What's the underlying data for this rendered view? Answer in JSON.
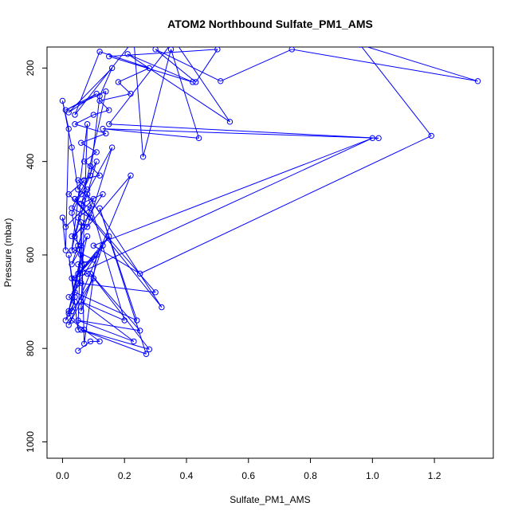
{
  "chart_data": {
    "type": "line",
    "title": "ATOM2 Northbound Sulfate_PM1_AMS",
    "xlabel": "Sulfate_PM1_AMS",
    "ylabel": "Pressure (mbar)",
    "xlim": [
      -0.05,
      1.39
    ],
    "ylim": [
      1035,
      155
    ],
    "y_reversed": true,
    "x_ticks": [
      "0.0",
      "0.2",
      "0.4",
      "0.6",
      "0.8",
      "1.0",
      "1.2"
    ],
    "y_ticks": [
      "200",
      "400",
      "600",
      "800",
      "1000"
    ],
    "grid": false,
    "series": [
      {
        "color": "#0000ff",
        "marker": "open-circle",
        "points": [
          [
            0.05,
            805
          ],
          [
            0.09,
            785
          ],
          [
            0.12,
            785
          ],
          [
            0.07,
            760
          ],
          [
            0.03,
            740
          ],
          [
            0.02,
            725
          ],
          [
            0.04,
            700
          ],
          [
            0.02,
            690
          ],
          [
            0.06,
            660
          ],
          [
            0.03,
            650
          ],
          [
            0.08,
            640
          ],
          [
            0.05,
            620
          ],
          [
            0.1,
            610
          ],
          [
            0.04,
            590
          ],
          [
            0.06,
            580
          ],
          [
            0.03,
            560
          ],
          [
            0.07,
            540
          ],
          [
            0.05,
            520
          ],
          [
            0.09,
            500
          ],
          [
            0.04,
            480
          ],
          [
            0.06,
            470
          ],
          [
            0.08,
            460
          ],
          [
            0.05,
            440
          ],
          [
            0.12,
            430
          ],
          [
            0.09,
            410
          ],
          [
            0.07,
            400
          ],
          [
            0.11,
            380
          ],
          [
            0.06,
            360
          ],
          [
            0.14,
            340
          ],
          [
            0.04,
            320
          ],
          [
            0.1,
            300
          ],
          [
            0.15,
            290
          ],
          [
            0.12,
            270
          ],
          [
            0.22,
            255
          ],
          [
            0.18,
            230
          ],
          [
            0.28,
            200
          ],
          [
            0.12,
            165
          ],
          [
            0.04,
            300
          ],
          [
            0.23,
            140
          ],
          [
            0.26,
            390
          ],
          [
            0.35,
            160
          ],
          [
            0.44,
            350
          ],
          [
            0.13,
            330
          ],
          [
            1.02,
            350
          ],
          [
            0.15,
            320
          ],
          [
            0.36,
            140
          ],
          [
            0.54,
            315
          ],
          [
            0.21,
            170
          ],
          [
            0.42,
            230
          ],
          [
            0.15,
            175
          ],
          [
            0.5,
            160
          ],
          [
            0.43,
            230
          ],
          [
            0.3,
            160
          ],
          [
            0.51,
            228
          ],
          [
            0.74,
            160
          ],
          [
            1.34,
            228
          ],
          [
            0.96,
            150
          ],
          [
            1.19,
            345
          ],
          [
            0.25,
            640
          ],
          [
            0.1,
            580
          ],
          [
            1.0,
            350
          ],
          [
            0.05,
            640
          ],
          [
            0.15,
            560
          ],
          [
            0.05,
            660
          ],
          [
            0.3,
            680
          ],
          [
            0.04,
            480
          ],
          [
            0.32,
            712
          ],
          [
            0.08,
            470
          ],
          [
            0.2,
            740
          ],
          [
            0.06,
            700
          ],
          [
            0.23,
            785
          ],
          [
            0.05,
            740
          ],
          [
            0.25,
            762
          ],
          [
            0.09,
            640
          ],
          [
            0.28,
            802
          ],
          [
            0.06,
            760
          ],
          [
            0.27,
            812
          ],
          [
            0.12,
            500
          ],
          [
            0.24,
            740
          ],
          [
            0.04,
            680
          ],
          [
            0.06,
            600
          ],
          [
            0.02,
            720
          ],
          [
            0.08,
            560
          ],
          [
            0.03,
            620
          ],
          [
            0.1,
            480
          ],
          [
            0.01,
            540
          ],
          [
            0.0,
            520
          ],
          [
            0.01,
            590
          ],
          [
            0.02,
            330
          ],
          [
            0.0,
            270
          ],
          [
            0.03,
            370
          ],
          [
            0.05,
            460
          ],
          [
            0.07,
            440
          ],
          [
            0.02,
            470
          ],
          [
            0.09,
            520
          ],
          [
            0.03,
            500
          ],
          [
            0.11,
            400
          ],
          [
            0.04,
            560
          ],
          [
            0.13,
            470
          ],
          [
            0.06,
            490
          ],
          [
            0.16,
            370
          ],
          [
            0.08,
            540
          ],
          [
            0.22,
            430
          ],
          [
            0.02,
            750
          ],
          [
            0.1,
            650
          ],
          [
            0.01,
            740
          ],
          [
            0.07,
            620
          ],
          [
            0.05,
            580
          ],
          [
            0.03,
            510
          ],
          [
            0.09,
            430
          ],
          [
            0.12,
            260
          ],
          [
            0.16,
            200
          ],
          [
            0.02,
            295
          ],
          [
            0.11,
            255
          ],
          [
            0.01,
            290
          ],
          [
            0.14,
            250
          ],
          [
            0.03,
            590
          ],
          [
            0.08,
            320
          ],
          [
            0.06,
            720
          ],
          [
            0.13,
            580
          ],
          [
            0.04,
            650
          ],
          [
            0.11,
            600
          ],
          [
            0.07,
            790
          ],
          [
            0.06,
            530
          ],
          [
            0.05,
            760
          ],
          [
            0.02,
            600
          ],
          [
            0.04,
            690
          ],
          [
            0.03,
            720
          ]
        ]
      }
    ]
  }
}
